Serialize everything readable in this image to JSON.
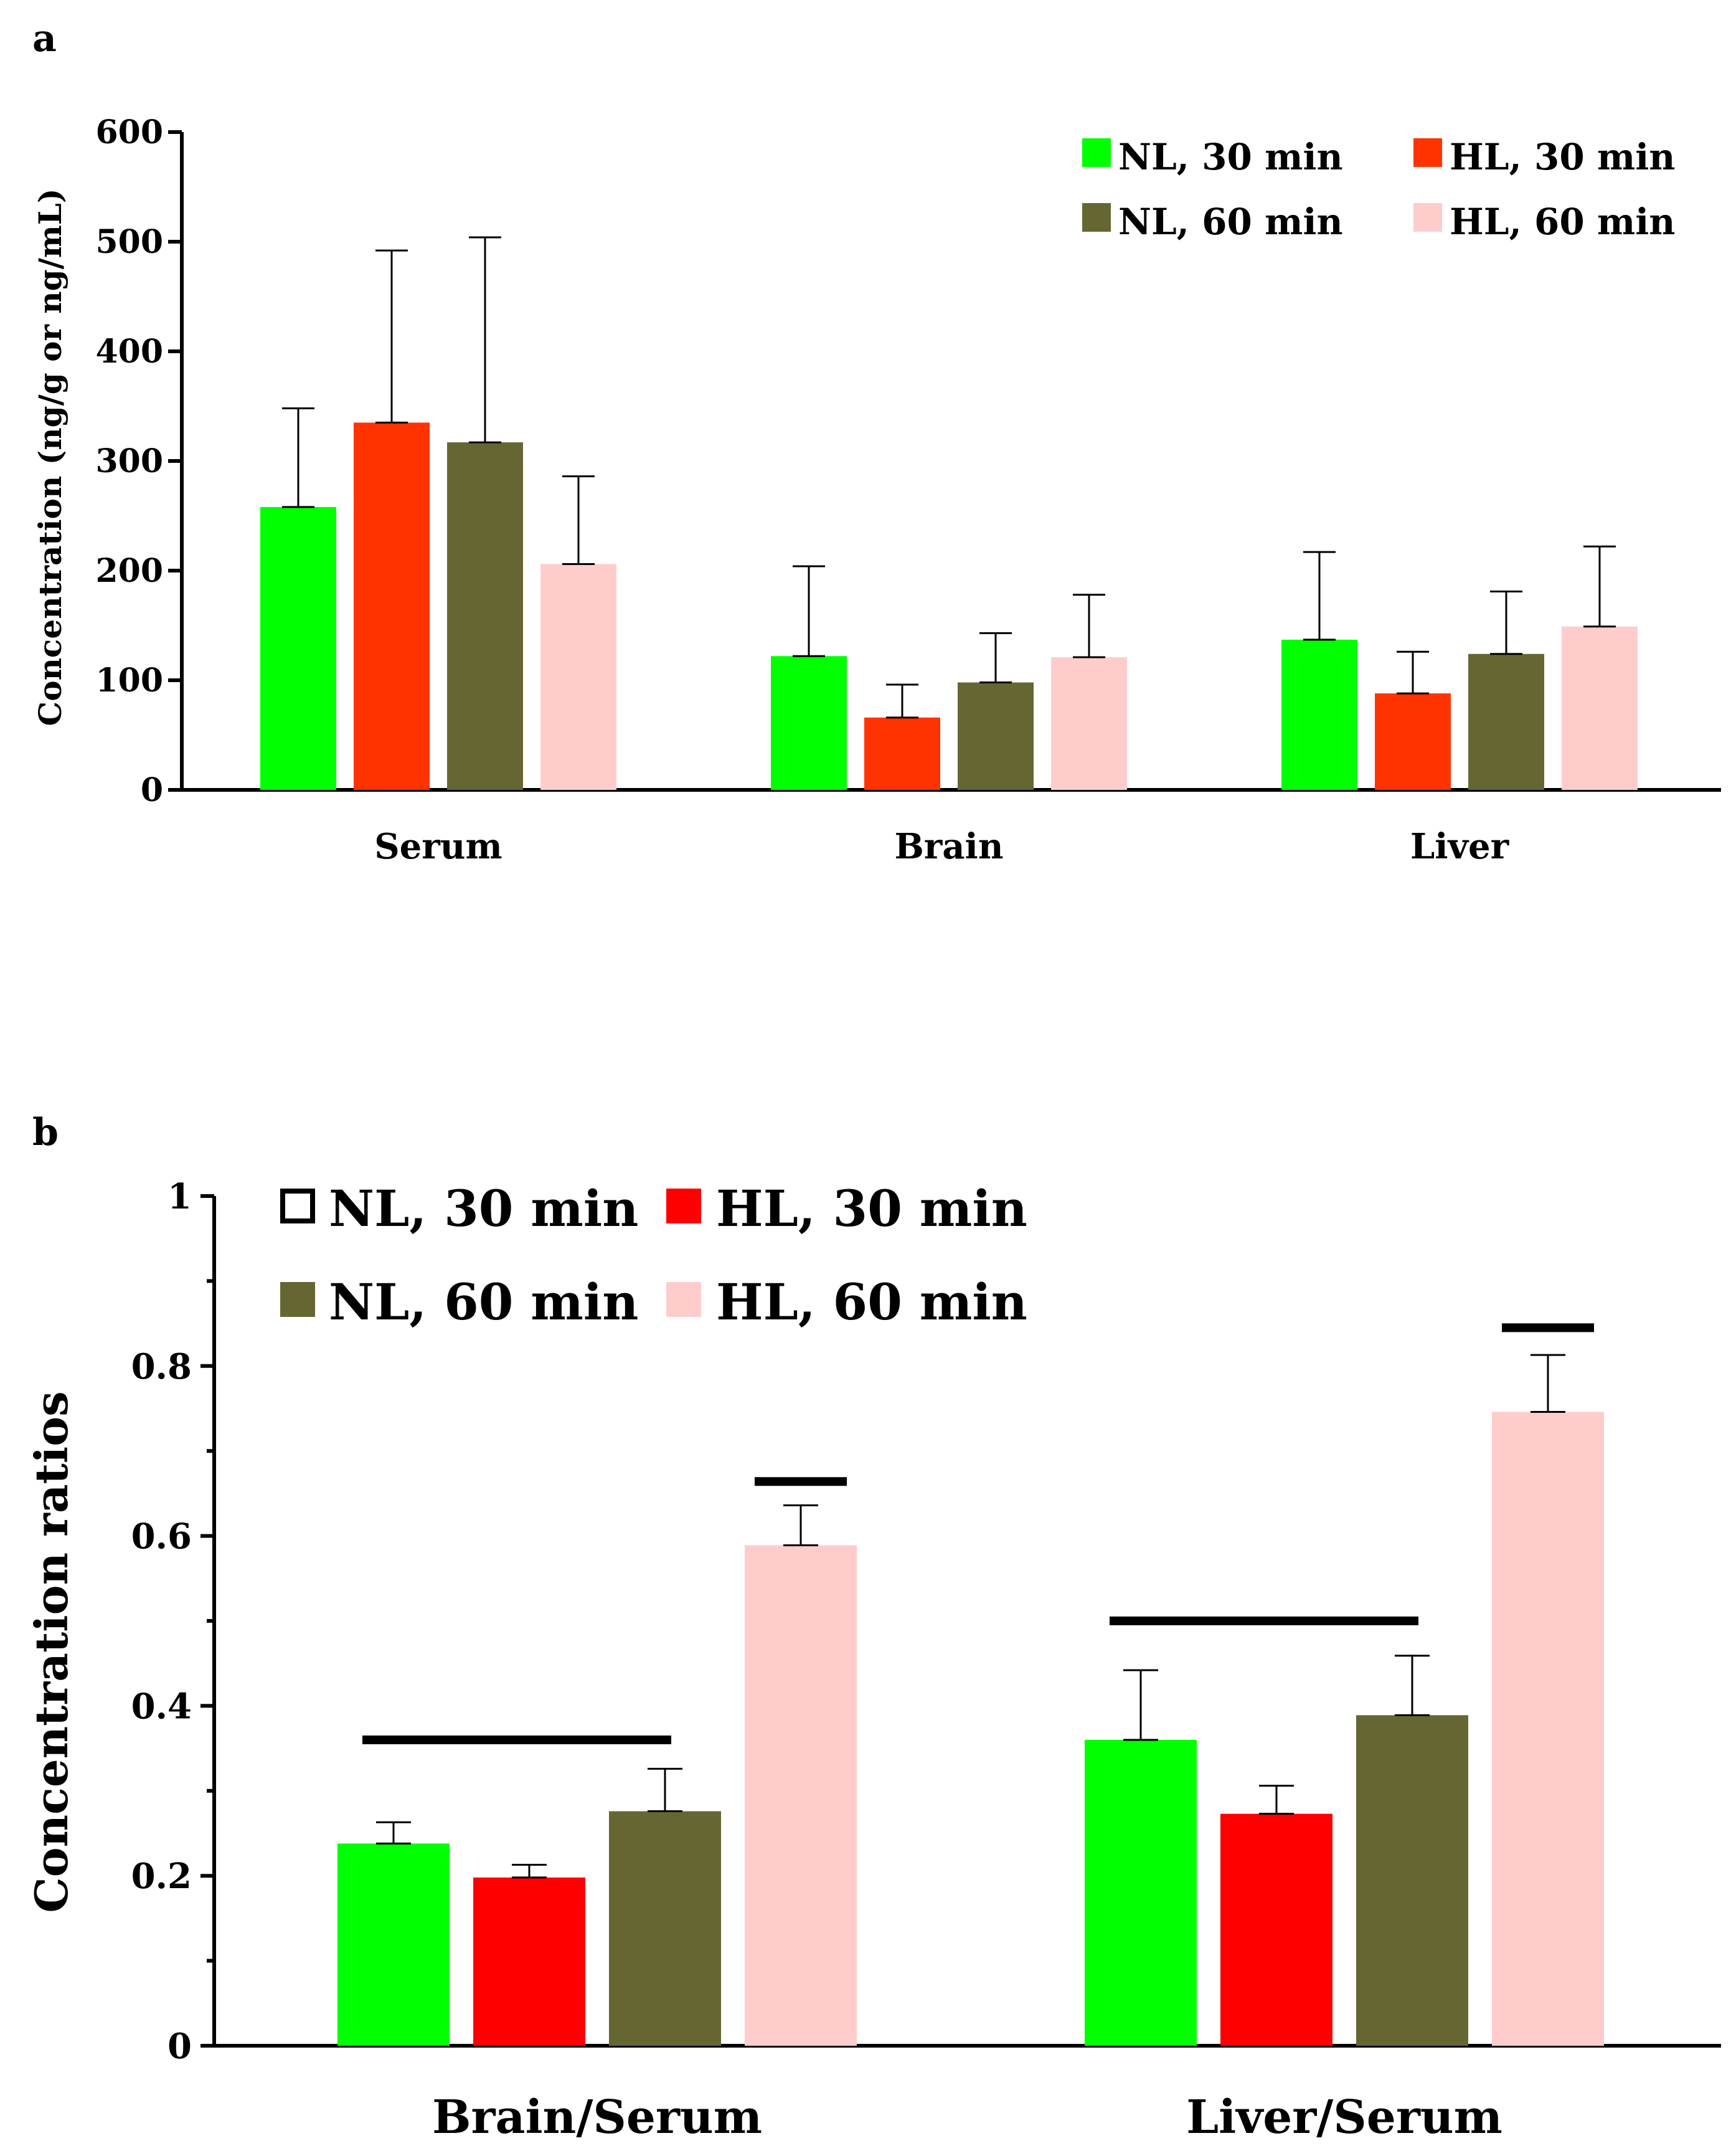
{
  "chart_data": [
    {
      "panel": "a",
      "type": "bar",
      "title": "",
      "xlabel": "",
      "ylabel": "Concentration (ng/g or ng/mL)",
      "ylim": [
        0,
        600
      ],
      "yticks": [
        0,
        100,
        200,
        300,
        400,
        500,
        600
      ],
      "categories": [
        "Serum",
        "Brain",
        "Liver"
      ],
      "legend_position": "top-right",
      "series": [
        {
          "name": "NL, 30 min",
          "color": "#00ff00",
          "legend_swatch": "filled",
          "values": [
            258,
            122,
            137
          ],
          "errors": [
            90,
            82,
            80
          ]
        },
        {
          "name": "HL, 30 min",
          "color": "#ff3300",
          "legend_swatch": "filled",
          "values": [
            335,
            66,
            88
          ],
          "errors": [
            157,
            30,
            38
          ]
        },
        {
          "name": "NL, 60 min",
          "color": "#666633",
          "legend_swatch": "filled",
          "values": [
            317,
            98,
            124
          ],
          "errors": [
            187,
            45,
            57
          ]
        },
        {
          "name": "HL, 60 min",
          "color": "#ffcccc",
          "legend_swatch": "filled",
          "values": [
            206,
            121,
            149
          ],
          "errors": [
            80,
            57,
            73
          ]
        }
      ],
      "significance_bars": []
    },
    {
      "panel": "b",
      "type": "bar",
      "title": "",
      "xlabel": "",
      "ylabel": "Concentration  ratios",
      "ylim": [
        0,
        1
      ],
      "yticks": [
        0,
        0.2,
        0.4,
        0.6,
        0.8,
        1
      ],
      "ytick_labels": [
        "0",
        "0.2",
        "0.4",
        "0.6",
        "0.8",
        "1"
      ],
      "categories": [
        "Brain/Serum",
        "Liver/Serum"
      ],
      "legend_position": "top-left",
      "series": [
        {
          "name": "NL, 30 min",
          "color": "#00ff00",
          "legend_swatch": "outline",
          "values": [
            0.238,
            0.36
          ],
          "errors": [
            0.025,
            0.082
          ]
        },
        {
          "name": "HL, 30 min",
          "color": "#ff0000",
          "legend_swatch": "filled",
          "values": [
            0.198,
            0.273
          ],
          "errors": [
            0.015,
            0.033
          ]
        },
        {
          "name": "NL, 60 min",
          "color": "#666633",
          "legend_swatch": "filled",
          "values": [
            0.276,
            0.389
          ],
          "errors": [
            0.05,
            0.07
          ]
        },
        {
          "name": "HL, 60 min",
          "color": "#ffcccc",
          "legend_swatch": "filled",
          "values": [
            0.589,
            0.746
          ],
          "errors": [
            0.047,
            0.067
          ]
        }
      ],
      "significance_bars": [
        {
          "category": 0,
          "from_series": 0,
          "to_series": 2,
          "y": 0.36
        },
        {
          "category": 0,
          "from_series": 3,
          "to_series": 3,
          "y": 0.664
        },
        {
          "category": 1,
          "from_series": 0,
          "to_series": 2,
          "y": 0.5
        },
        {
          "category": 1,
          "from_series": 3,
          "to_series": 3,
          "y": 0.845
        }
      ]
    }
  ]
}
